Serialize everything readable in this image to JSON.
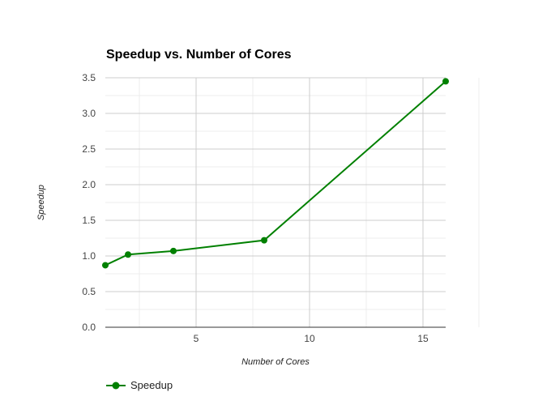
{
  "chart_data": {
    "type": "line",
    "title": "Speedup vs. Number of Cores",
    "xlabel": "Number of Cores",
    "ylabel": "Speedup",
    "xlim": [
      1,
      16
    ],
    "ylim": [
      0,
      3.5
    ],
    "x_ticks": [
      "5",
      "10",
      "15"
    ],
    "y_ticks": [
      "0.0",
      "0.5",
      "1.0",
      "1.5",
      "2.0",
      "2.5",
      "3.0",
      "3.5"
    ],
    "grid": true,
    "legend_position": "bottom-left",
    "series": [
      {
        "name": "Speedup",
        "color": "#008000",
        "x": [
          1,
          2,
          4,
          8,
          16
        ],
        "y": [
          0.87,
          1.02,
          1.07,
          1.22,
          3.45
        ]
      }
    ]
  }
}
